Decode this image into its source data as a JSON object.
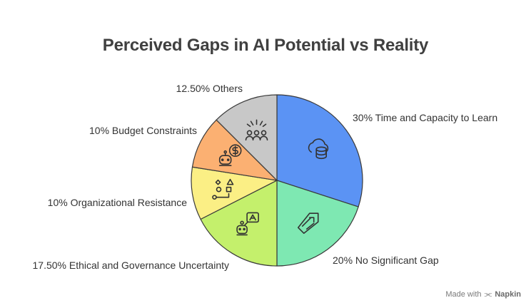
{
  "chart_data": {
    "type": "pie",
    "title": "Perceived Gaps in AI Potential vs Reality",
    "slices": [
      {
        "label": "30% Time and Capacity to Learn",
        "value": 30,
        "color": "#5b93f4",
        "icon": "database-cloud-icon"
      },
      {
        "label": "20% No Significant Gap",
        "value": 20,
        "color": "#7ee8b2",
        "icon": "tag-pointer-icon"
      },
      {
        "label": "17.50% Ethical and Governance Uncertainty",
        "value": 17.5,
        "color": "#c4f06c",
        "icon": "robot-speech-icon"
      },
      {
        "label": "10% Organizational Resistance",
        "value": 10,
        "color": "#fbef85",
        "icon": "shapes-path-icon"
      },
      {
        "label": "10% Budget Constraints",
        "value": 10,
        "color": "#fbb072",
        "icon": "robot-dollar-icon"
      },
      {
        "label": "12.50% Others",
        "value": 12.5,
        "color": "#c8c8c8",
        "icon": "people-sparkle-icon"
      }
    ]
  },
  "footer": {
    "made_with": "Made with",
    "brand": "Napkin"
  }
}
